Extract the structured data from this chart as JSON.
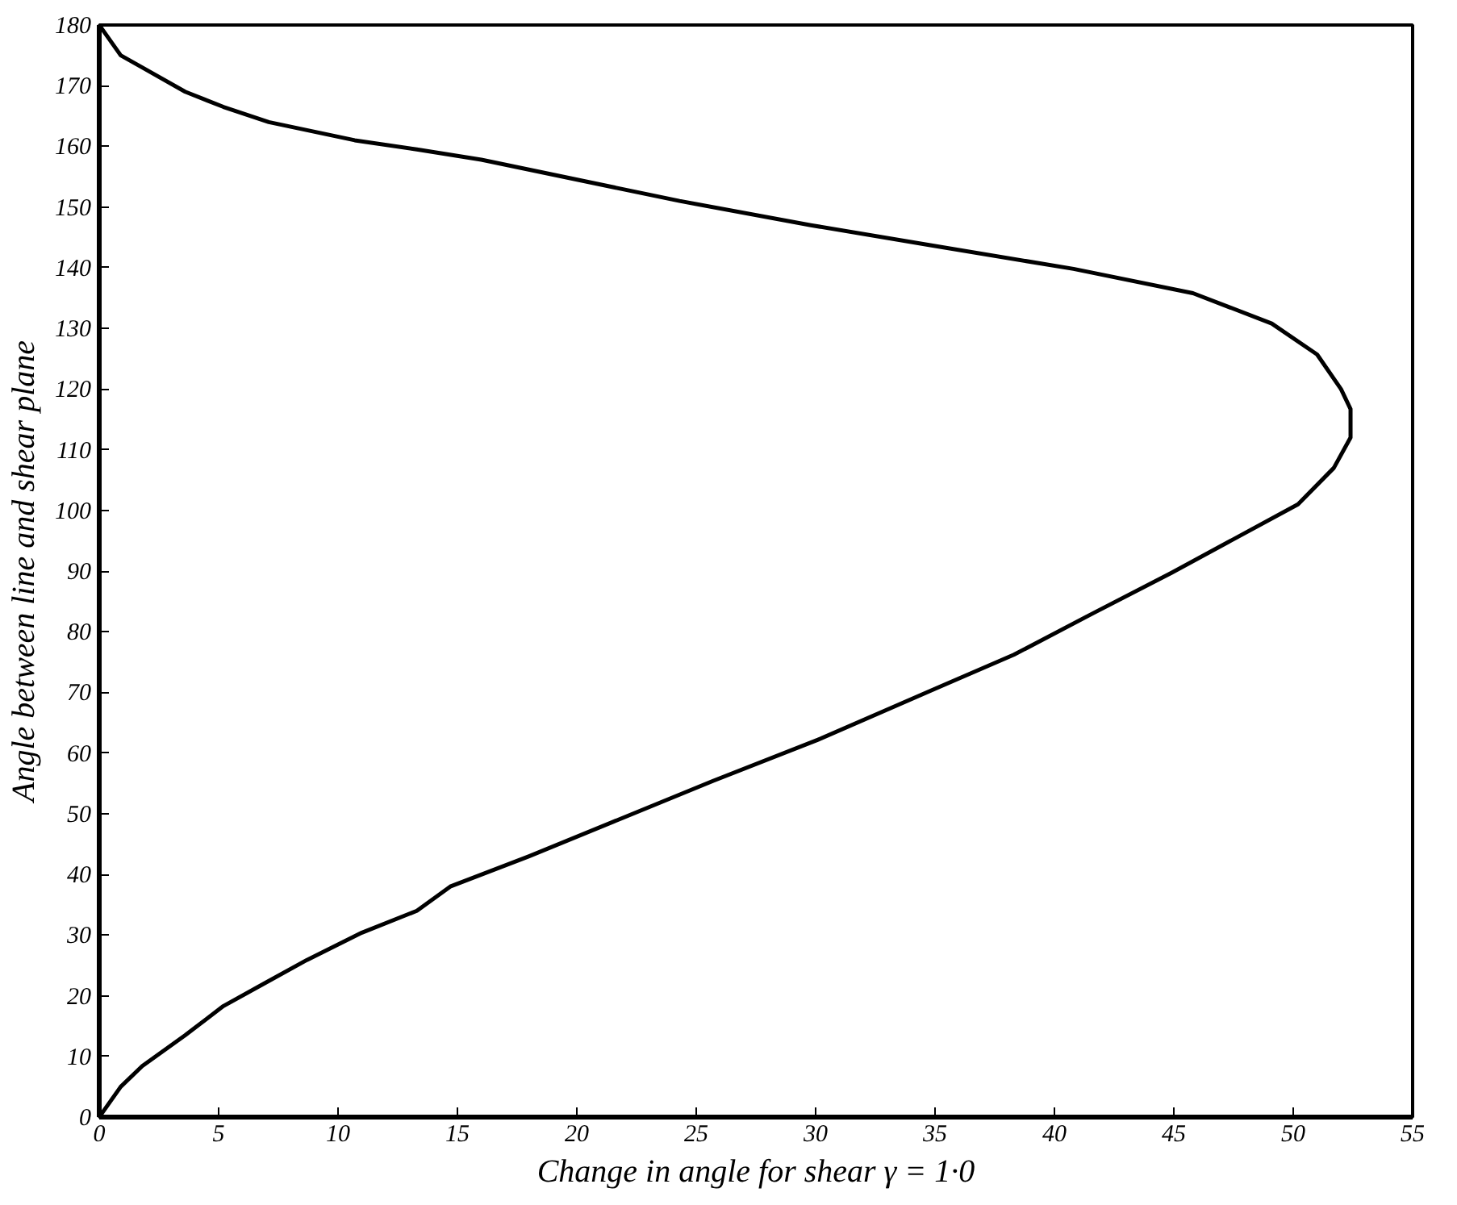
{
  "chart_data": {
    "type": "line",
    "xlabel": "Change in angle for shear γ = 1·0",
    "ylabel": "Angle between line and shear plane",
    "x": [
      0,
      0.9,
      1.8,
      3.6,
      5.2,
      6.9,
      8.7,
      11.0,
      13.3,
      14.7,
      18.0,
      25.7,
      30.1,
      35.0,
      38.3,
      41.6,
      44.9,
      50.2,
      51.7,
      52.4,
      52.4,
      52.0,
      51.0,
      49.1,
      45.8,
      40.8,
      34.8,
      29.8,
      24.3,
      16.0,
      13.3,
      10.7,
      7.1,
      5.2,
      3.6,
      1.8,
      0.9,
      0
    ],
    "series": [
      {
        "color": "#000000",
        "values": [
          0,
          5,
          8.4,
          13.5,
          18.3,
          22,
          25.9,
          30.4,
          34,
          38,
          43,
          55.4,
          62.2,
          70.6,
          76.2,
          83,
          89.7,
          101,
          107,
          112,
          116.7,
          120,
          125.7,
          130.8,
          135.8,
          139.8,
          143.7,
          147,
          151,
          157.8,
          159.5,
          161,
          164,
          166.5,
          169,
          173,
          175,
          180
        ]
      }
    ],
    "xlim": [
      0,
      55
    ],
    "ylim": [
      0,
      180
    ],
    "xticks": [
      0,
      5,
      10,
      15,
      20,
      25,
      30,
      35,
      40,
      45,
      50,
      55
    ],
    "yticks": [
      0,
      10,
      20,
      30,
      40,
      50,
      60,
      70,
      80,
      90,
      100,
      110,
      120,
      130,
      140,
      150,
      160,
      170,
      180
    ],
    "grid": false,
    "marker": "none",
    "line_style": "solid"
  }
}
